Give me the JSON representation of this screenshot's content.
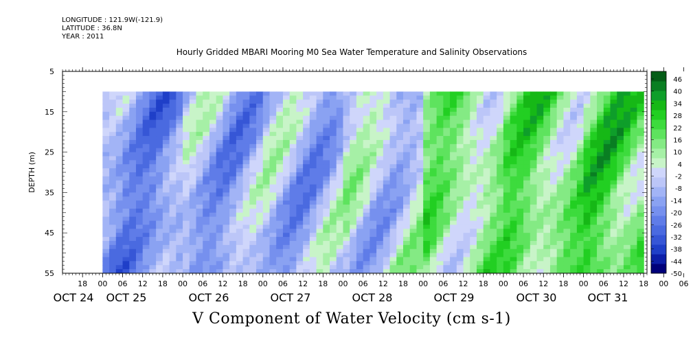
{
  "header": {
    "longitude": "LONGITUDE : 121.9W(-121.9)",
    "latitude": "LATITUDE : 36.8N",
    "year": "YEAR : 2011"
  },
  "chart_data": {
    "type": "heatmap",
    "title": "Hourly Gridded MBARI Mooring M0 Sea Water Temperature and Salinity Observations",
    "variable_label": "V Component of Water Velocity (cm s-1)",
    "ylabel": "DEPTH (m)",
    "y_range": [
      5,
      55
    ],
    "y_ticks": [
      5,
      15,
      25,
      35,
      45,
      55
    ],
    "data_depth_range": [
      10,
      55
    ],
    "x_range": [
      "2011-10-24T12:00",
      "2011-10-31T19:00"
    ],
    "data_time_range": [
      "2011-10-25T00:00",
      "2011-10-31T18:00"
    ],
    "x_hour_ticks": [
      "18",
      "00",
      "06",
      "12",
      "18",
      "00",
      "06",
      "12",
      "18",
      "00",
      "06",
      "12",
      "18",
      "00",
      "06",
      "12",
      "18",
      "00",
      "06",
      "12",
      "18",
      "00",
      "06",
      "12",
      "18",
      "00",
      "06",
      "12",
      "18",
      "00",
      "06",
      "12"
    ],
    "x_day_labels": [
      "OCT 24",
      "OCT 25",
      "OCT 26",
      "OCT 27",
      "OCT 28",
      "OCT 29",
      "OCT 30",
      "OCT 31"
    ],
    "colorbar": {
      "min": -50,
      "max": 50,
      "step": 6,
      "labels": [
        "46",
        "40",
        "34",
        "28",
        "22",
        "16",
        "10",
        "4",
        "-2",
        "-8",
        "-14",
        "-20",
        "-26",
        "-32",
        "-38",
        "-44",
        "-50"
      ],
      "colors_low_to_high": [
        "#00007a",
        "#0c1ea8",
        "#1f3fc8",
        "#3656d6",
        "#4a6ae0",
        "#5f7ce8",
        "#7690ee",
        "#8aa2f2",
        "#a2b4f6",
        "#bcc6f8",
        "#cfd6fb",
        "#c8f4c8",
        "#a6f0a6",
        "#84ea84",
        "#5ee35e",
        "#3ddb3d",
        "#22cf22",
        "#16b816",
        "#0e9e2a",
        "#097e22",
        "#045c16"
      ]
    },
    "band_profile_days": [
      {
        "day": "OCT 25",
        "value": -16
      },
      {
        "day": "OCT 26",
        "value": -10
      },
      {
        "day": "OCT 27",
        "value": -8
      },
      {
        "day": "OCT 28",
        "value": -2
      },
      {
        "day": "OCT 29",
        "value": 12
      },
      {
        "day": "OCT 30",
        "value": 16
      },
      {
        "day": "OCT 31",
        "value": 20
      }
    ]
  }
}
